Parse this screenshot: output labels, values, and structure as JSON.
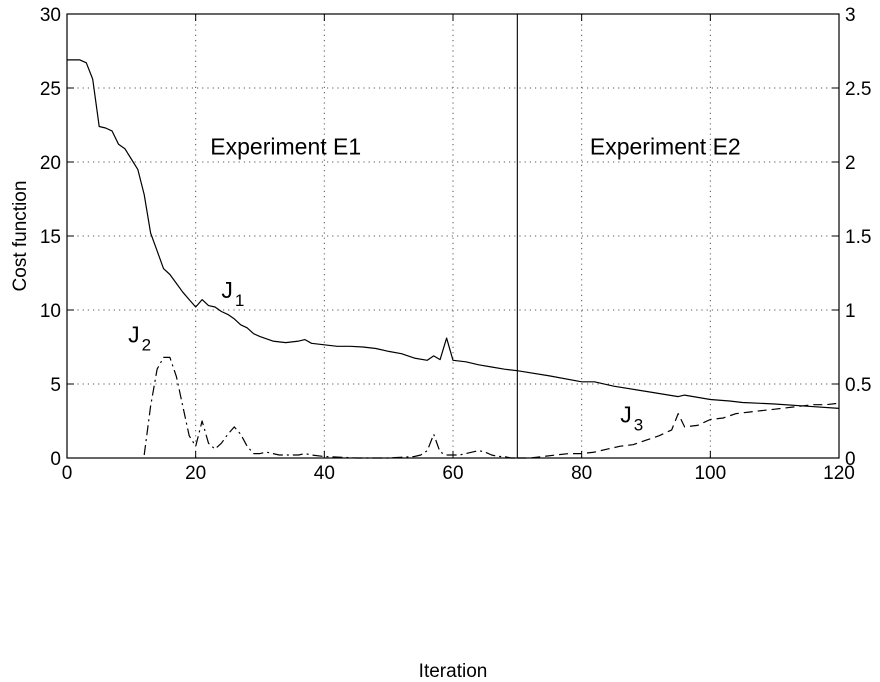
{
  "chart_data": {
    "type": "line",
    "xlabel": "Iteration",
    "ylabel": "Cost function",
    "xlim": [
      0,
      120
    ],
    "ylim": [
      0,
      30
    ],
    "y2lim": [
      0,
      3
    ],
    "grid": true,
    "xticks": [
      "0",
      "20",
      "40",
      "60",
      "80",
      "100",
      "120"
    ],
    "yticks": [
      "0",
      "5",
      "10",
      "15",
      "20",
      "25",
      "30"
    ],
    "y2ticks": [
      "0",
      "0.5",
      "1",
      "1.5",
      "2",
      "2.5",
      "3"
    ],
    "divider_x": 70,
    "annotations": [
      {
        "text": "Experiment E1",
        "x": 34,
        "y": 20.5
      },
      {
        "text": "Experiment E2",
        "x": 93,
        "y": 20.5
      }
    ],
    "series": [
      {
        "name": "J1",
        "axis": "left",
        "style": "solid",
        "label": {
          "main": "J",
          "sub": "1",
          "x": 24,
          "y": 10.8
        },
        "x": [
          0,
          1,
          2,
          3,
          4,
          5,
          6,
          7,
          8,
          9,
          10,
          11,
          12,
          13,
          14,
          15,
          16,
          17,
          18,
          19,
          20,
          21,
          22,
          23,
          24,
          25,
          26,
          27,
          28,
          29,
          30,
          32,
          34,
          36,
          37,
          38,
          40,
          42,
          44,
          46,
          48,
          50,
          52,
          54,
          56,
          57,
          58,
          59,
          60,
          62,
          64,
          66,
          68,
          70,
          75,
          80,
          82,
          85,
          90,
          95,
          96,
          100,
          103,
          105,
          110,
          115,
          120
        ],
        "y": [
          26.9,
          26.9,
          26.9,
          26.7,
          25.6,
          22.4,
          22.3,
          22.1,
          21.2,
          20.9,
          20.2,
          19.5,
          17.8,
          15.2,
          14.0,
          12.8,
          12.4,
          11.8,
          11.2,
          10.7,
          10.2,
          10.7,
          10.3,
          10.2,
          9.9,
          9.7,
          9.4,
          9.0,
          8.8,
          8.4,
          8.2,
          7.9,
          7.8,
          7.9,
          8.0,
          7.75,
          7.65,
          7.55,
          7.55,
          7.5,
          7.4,
          7.2,
          7.05,
          6.75,
          6.6,
          6.9,
          6.65,
          8.1,
          6.6,
          6.5,
          6.3,
          6.15,
          6.0,
          5.9,
          5.55,
          5.15,
          5.15,
          4.85,
          4.5,
          4.15,
          4.25,
          3.95,
          3.85,
          3.75,
          3.65,
          3.5,
          3.35
        ]
      },
      {
        "name": "J2",
        "axis": "right",
        "style": "dashdot",
        "label": {
          "main": "J",
          "sub": "2",
          "x": 9.5,
          "y": 7.8
        },
        "x": [
          12,
          13,
          14,
          15,
          16,
          17,
          18,
          19,
          20,
          21,
          22,
          23,
          24,
          25,
          26,
          27,
          28,
          29,
          30,
          31,
          32,
          33,
          34,
          35,
          36,
          37,
          38,
          40,
          45,
          50,
          54,
          55,
          56,
          57,
          58,
          59,
          60,
          61,
          62,
          63,
          64,
          65,
          66,
          67,
          68,
          69,
          70
        ],
        "y": [
          0.02,
          0.35,
          0.6,
          0.68,
          0.68,
          0.55,
          0.35,
          0.15,
          0.08,
          0.25,
          0.1,
          0.06,
          0.1,
          0.16,
          0.21,
          0.16,
          0.08,
          0.03,
          0.03,
          0.04,
          0.03,
          0.02,
          0.02,
          0.02,
          0.02,
          0.03,
          0.02,
          0.01,
          0.0,
          0.0,
          0.01,
          0.02,
          0.05,
          0.16,
          0.04,
          0.02,
          0.02,
          0.02,
          0.03,
          0.04,
          0.05,
          0.04,
          0.02,
          0.01,
          0.01,
          0.0,
          0.0
        ]
      },
      {
        "name": "J3",
        "axis": "right",
        "style": "dashed",
        "label": {
          "main": "J",
          "sub": "3",
          "x": 86,
          "y": 2.4
        },
        "x": [
          70,
          72,
          74,
          76,
          78,
          80,
          82,
          84,
          86,
          88,
          90,
          92,
          94,
          95,
          96,
          98,
          100,
          102,
          104,
          106,
          108,
          110,
          112,
          114,
          116,
          118,
          120
        ],
        "y": [
          0.0,
          0.0,
          0.01,
          0.02,
          0.03,
          0.03,
          0.04,
          0.06,
          0.08,
          0.09,
          0.12,
          0.15,
          0.19,
          0.3,
          0.21,
          0.22,
          0.26,
          0.27,
          0.3,
          0.31,
          0.32,
          0.33,
          0.34,
          0.35,
          0.36,
          0.36,
          0.37
        ]
      }
    ]
  }
}
